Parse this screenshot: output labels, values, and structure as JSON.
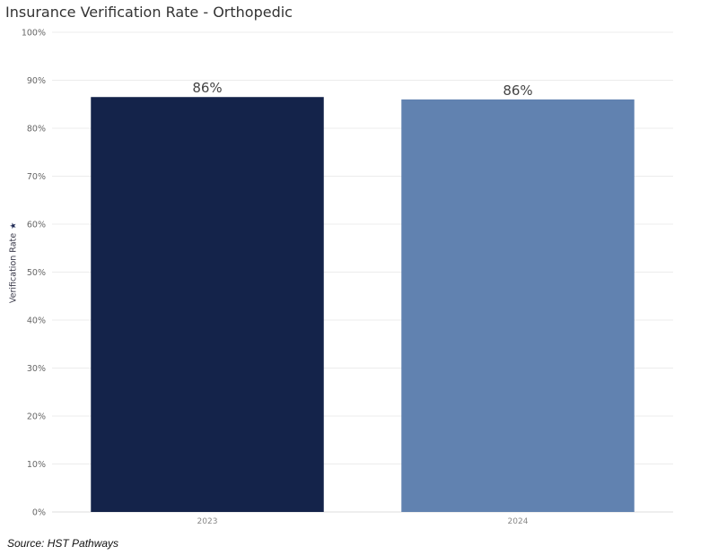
{
  "title": "Insurance Verification Rate - Orthopedic",
  "source": "Source: HST Pathways",
  "colors": {
    "bar_2023": "#14234a",
    "bar_2024": "#6182b0",
    "grid": "#ececec",
    "tick_text": "#666666",
    "label_text": "#444444"
  },
  "icons": {
    "axis_pin": "pin-icon"
  },
  "chart_data": {
    "type": "bar",
    "title": "Insurance Verification Rate - Orthopedic",
    "categories": [
      "2023",
      "2024"
    ],
    "values": [
      86.5,
      86.0
    ],
    "data_labels": [
      "86%",
      "86%"
    ],
    "bar_colors": [
      "#14234a",
      "#6182b0"
    ],
    "xlabel": "",
    "ylabel": "Verification Rate",
    "ylim": [
      0,
      100
    ],
    "yticks": [
      0,
      10,
      20,
      30,
      40,
      50,
      60,
      70,
      80,
      90,
      100
    ],
    "ytick_labels": [
      "0%",
      "10%",
      "20%",
      "30%",
      "40%",
      "50%",
      "60%",
      "70%",
      "80%",
      "90%",
      "100%"
    ],
    "grid": true,
    "legend": "none"
  }
}
